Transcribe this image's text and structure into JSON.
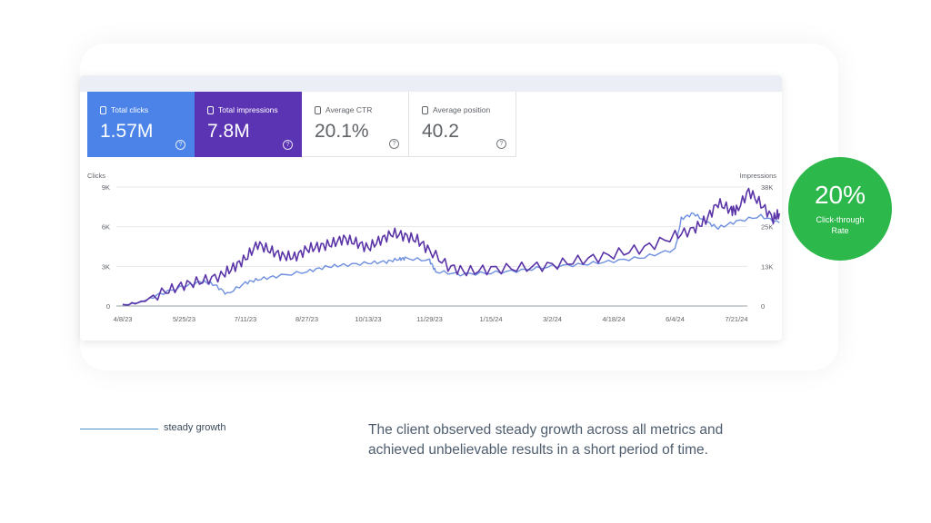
{
  "metrics": [
    {
      "label": "Total clicks",
      "value": "1.57M",
      "bg": "#4b83e8"
    },
    {
      "label": "Total impressions",
      "value": "7.8M",
      "bg": "#5b34b3"
    },
    {
      "label": "Average CTR",
      "value": "20.1%",
      "bg": "#ffffff"
    },
    {
      "label": "Average position",
      "value": "40.2",
      "bg": "#ffffff"
    }
  ],
  "help_glyph": "?",
  "badge": {
    "value": "20%",
    "label_line1": "Click-through",
    "label_line2": "Rate",
    "color": "#2db84c"
  },
  "legend": {
    "text": "steady growth",
    "color": "#4a90c8"
  },
  "description": {
    "line1": "The client observed steady growth across all metrics and",
    "line2": "achieved unbelievable results in a short period of time."
  },
  "chart_data": {
    "type": "line",
    "ylabel": "Clicks",
    "y2label": "Impressions",
    "y_ticks": [
      "9K",
      "6K",
      "3K",
      "0"
    ],
    "y2_ticks": [
      "38K",
      "25K",
      "13K",
      "0"
    ],
    "ylim": [
      0,
      9000
    ],
    "y2lim": [
      0,
      38000
    ],
    "grid": true,
    "x_ticks": [
      "4/8/23",
      "5/25/23",
      "7/11/23",
      "8/27/23",
      "10/13/23",
      "11/29/23",
      "1/15/24",
      "3/2/24",
      "4/18/24",
      "6/4/24",
      "7/21/24"
    ],
    "series": [
      {
        "axis": "left",
        "color": "#6f8fdf",
        "points": [
          [
            0,
            50
          ],
          [
            0.3,
            300
          ],
          [
            0.6,
            900
          ],
          [
            1,
            1500
          ],
          [
            1.3,
            1850
          ],
          [
            1.5,
            1600
          ],
          [
            1.7,
            900
          ],
          [
            2,
            1750
          ],
          [
            2.2,
            2000
          ],
          [
            2.5,
            2250
          ],
          [
            3,
            2600
          ],
          [
            3.3,
            2950
          ],
          [
            3.6,
            3100
          ],
          [
            4,
            3250
          ],
          [
            4.3,
            3350
          ],
          [
            4.5,
            3550
          ],
          [
            4.6,
            3600
          ],
          [
            5,
            3450
          ],
          [
            5.1,
            2600
          ],
          [
            5.5,
            2400
          ],
          [
            6,
            2500
          ],
          [
            6.5,
            2700
          ],
          [
            7,
            3000
          ],
          [
            7.5,
            3150
          ],
          [
            8,
            3400
          ],
          [
            8.5,
            3700
          ],
          [
            9,
            4300
          ],
          [
            9.1,
            6600
          ],
          [
            9.3,
            7000
          ],
          [
            9.5,
            6400
          ],
          [
            9.7,
            5900
          ],
          [
            10,
            6400
          ],
          [
            10.4,
            6800
          ],
          [
            10.7,
            6300
          ]
        ]
      },
      {
        "axis": "left",
        "color": "#5b35a8",
        "points": [
          [
            0,
            50
          ],
          [
            0.3,
            300
          ],
          [
            0.7,
            1100
          ],
          [
            1,
            1600
          ],
          [
            1.3,
            1900
          ],
          [
            1.6,
            2300
          ],
          [
            1.8,
            2900
          ],
          [
            2,
            3600
          ],
          [
            2.2,
            4700
          ],
          [
            2.4,
            4200
          ],
          [
            2.6,
            3800
          ],
          [
            2.8,
            3700
          ],
          [
            3,
            4300
          ],
          [
            3.2,
            4500
          ],
          [
            3.4,
            4700
          ],
          [
            3.6,
            5100
          ],
          [
            3.8,
            4800
          ],
          [
            4,
            4400
          ],
          [
            4.2,
            5000
          ],
          [
            4.4,
            5500
          ],
          [
            4.6,
            5300
          ],
          [
            4.8,
            5000
          ],
          [
            5,
            4200
          ],
          [
            5.3,
            3000
          ],
          [
            5.6,
            2600
          ],
          [
            6,
            2800
          ],
          [
            6.5,
            2900
          ],
          [
            7,
            3100
          ],
          [
            7.5,
            3500
          ],
          [
            8,
            3900
          ],
          [
            8.5,
            4400
          ],
          [
            9,
            5300
          ],
          [
            9.3,
            5800
          ],
          [
            9.5,
            6500
          ],
          [
            9.7,
            7800
          ],
          [
            9.9,
            7300
          ],
          [
            10,
            7200
          ],
          [
            10.2,
            8700
          ],
          [
            10.4,
            7700
          ],
          [
            10.6,
            6600
          ],
          [
            10.7,
            7000
          ]
        ]
      }
    ]
  }
}
